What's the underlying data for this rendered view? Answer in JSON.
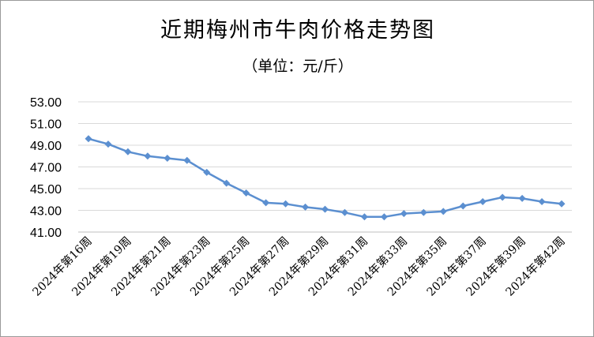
{
  "chart_data": {
    "type": "line",
    "title": "近期梅州市牛肉价格走势图",
    "subtitle": "（单位：元/斤）",
    "ylim": [
      41,
      53
    ],
    "yticks": [
      "53.00",
      "51.00",
      "49.00",
      "47.00",
      "45.00",
      "43.00",
      "41.00"
    ],
    "grid": true,
    "legend": "none",
    "color": "#5b8fd0",
    "x_labels": [
      "2024年第16周",
      "2024年第19周",
      "2024年第21周",
      "2024年第23周",
      "2024年第25周",
      "2024年第27周",
      "2024年第29周",
      "2024年第31周",
      "2024年第33周",
      "2024年第35周",
      "2024年第37周",
      "2024年第39周",
      "2024年第42周"
    ],
    "values": [
      49.6,
      49.1,
      48.4,
      48.0,
      47.8,
      47.6,
      46.5,
      45.5,
      44.6,
      43.7,
      43.6,
      43.3,
      43.1,
      42.8,
      42.4,
      42.4,
      42.7,
      42.8,
      42.9,
      43.4,
      43.8,
      44.2,
      44.1,
      43.8,
      43.6
    ]
  }
}
